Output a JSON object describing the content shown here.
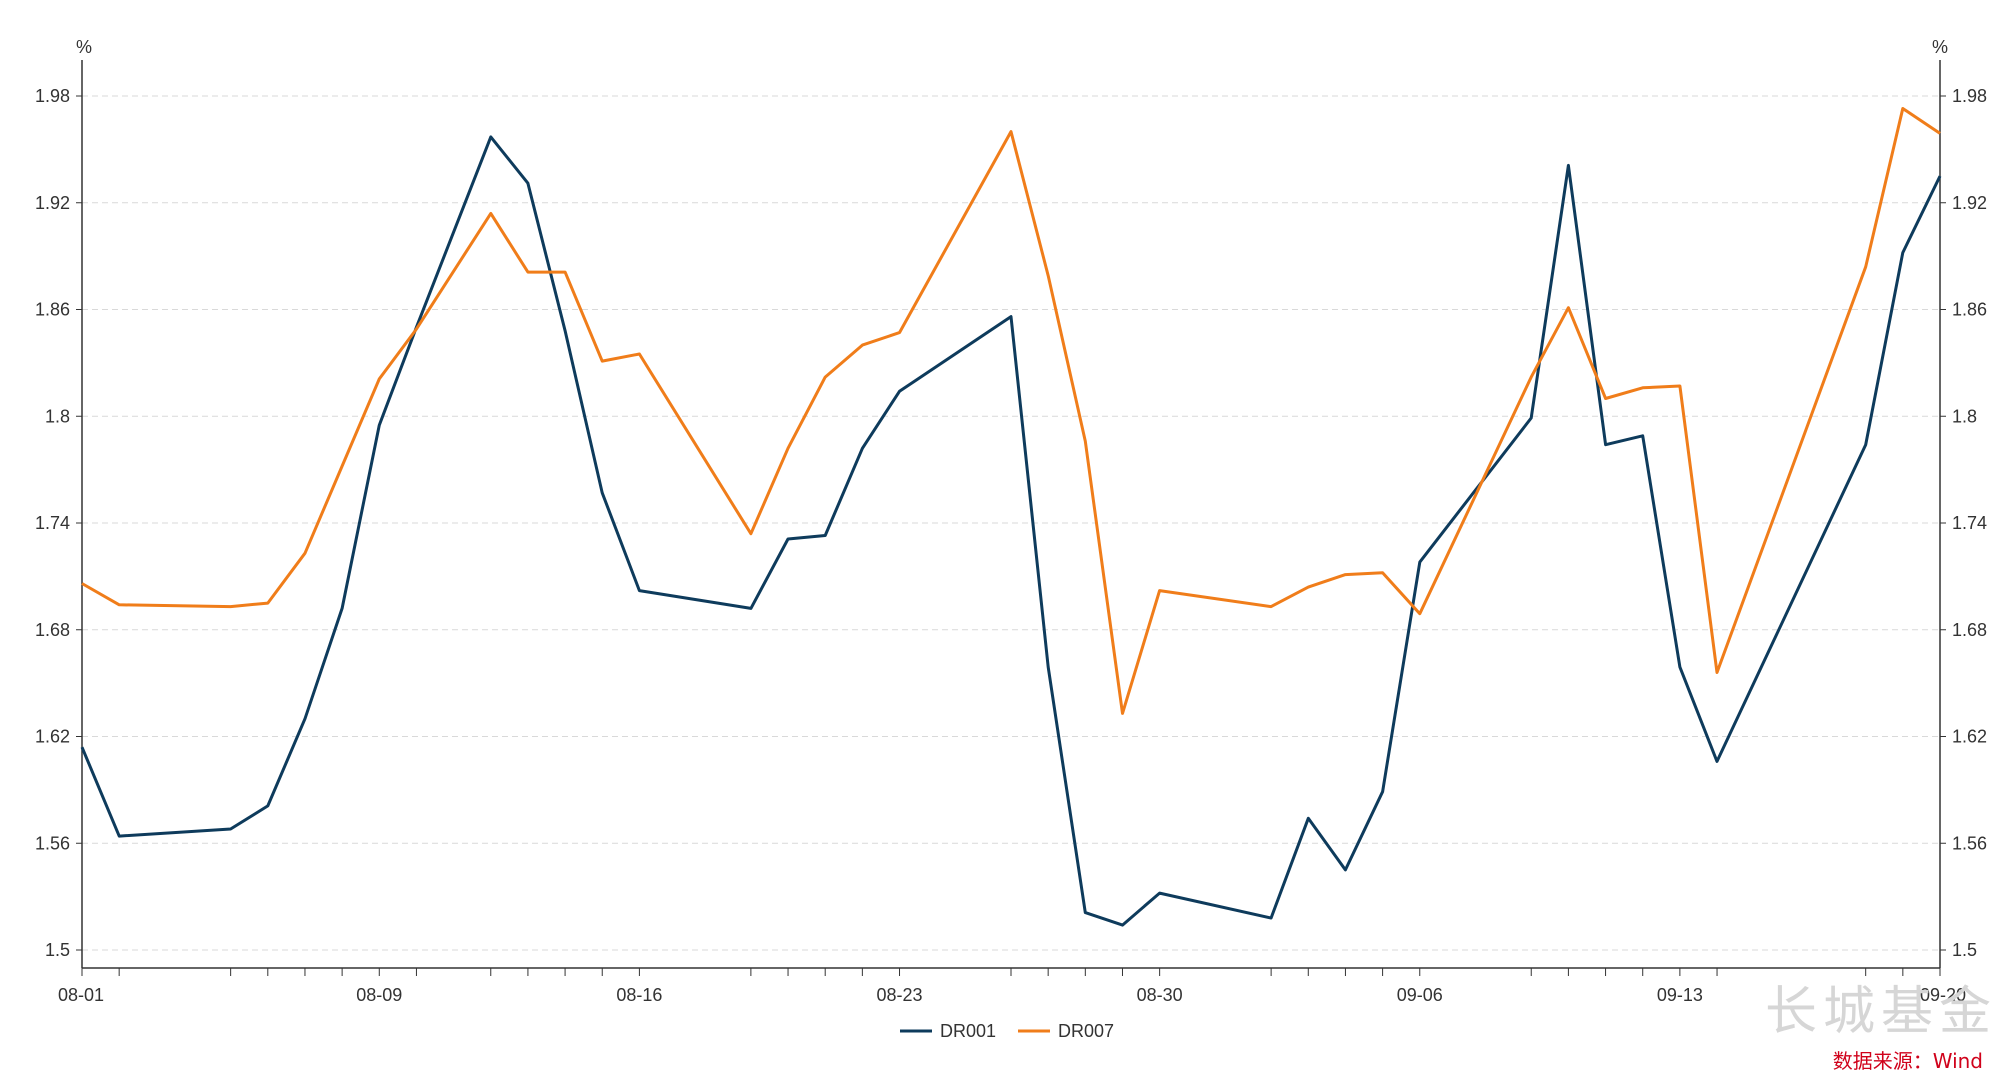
{
  "chart_data": {
    "type": "line",
    "left_axis_unit": "%",
    "right_axis_unit": "%",
    "ylim": [
      1.5,
      1.98
    ],
    "yticks": [
      "1.5",
      "1.56",
      "1.62",
      "1.68",
      "1.74",
      "1.8",
      "1.86",
      "1.92",
      "1.98"
    ],
    "x_start": "08-01",
    "x_end": "09-20",
    "xtick_labels": [
      "08-01",
      "08-09",
      "08-16",
      "08-23",
      "08-30",
      "09-06",
      "09-13",
      "09-20"
    ],
    "grid": "horizontal dashed",
    "legend_position": "bottom-center",
    "series": [
      {
        "name": "DR001",
        "color": "#0e3b5c",
        "points": [
          [
            "08-01",
            1.614
          ],
          [
            "08-02",
            1.564
          ],
          [
            "08-05",
            1.568
          ],
          [
            "08-06",
            1.581
          ],
          [
            "08-07",
            1.63
          ],
          [
            "08-08",
            1.692
          ],
          [
            "08-09",
            1.795
          ],
          [
            "08-10",
            1.85
          ],
          [
            "08-12",
            1.957
          ],
          [
            "08-13",
            1.931
          ],
          [
            "08-14",
            1.848
          ],
          [
            "08-15",
            1.757
          ],
          [
            "08-16",
            1.702
          ],
          [
            "08-19",
            1.692
          ],
          [
            "08-20",
            1.731
          ],
          [
            "08-21",
            1.733
          ],
          [
            "08-22",
            1.782
          ],
          [
            "08-23",
            1.814
          ],
          [
            "08-26",
            1.856
          ],
          [
            "08-27",
            1.659
          ],
          [
            "08-28",
            1.521
          ],
          [
            "08-29",
            1.514
          ],
          [
            "08-30",
            1.532
          ],
          [
            "09-02",
            1.518
          ],
          [
            "09-03",
            1.574
          ],
          [
            "09-04",
            1.545
          ],
          [
            "09-05",
            1.589
          ],
          [
            "09-06",
            1.718
          ],
          [
            "09-09",
            1.799
          ],
          [
            "09-10",
            1.941
          ],
          [
            "09-11",
            1.784
          ],
          [
            "09-12",
            1.789
          ],
          [
            "09-13",
            1.659
          ],
          [
            "09-14",
            1.606
          ],
          [
            "09-18",
            1.784
          ],
          [
            "09-19",
            1.892
          ],
          [
            "09-20",
            1.935
          ]
        ]
      },
      {
        "name": "DR007",
        "color": "#f07d1a",
        "points": [
          [
            "08-01",
            1.706
          ],
          [
            "08-02",
            1.694
          ],
          [
            "08-05",
            1.693
          ],
          [
            "08-06",
            1.695
          ],
          [
            "08-07",
            1.723
          ],
          [
            "08-08",
            1.772
          ],
          [
            "08-09",
            1.821
          ],
          [
            "08-10",
            1.849
          ],
          [
            "08-12",
            1.914
          ],
          [
            "08-13",
            1.881
          ],
          [
            "08-14",
            1.881
          ],
          [
            "08-15",
            1.831
          ],
          [
            "08-16",
            1.835
          ],
          [
            "08-19",
            1.734
          ],
          [
            "08-20",
            1.782
          ],
          [
            "08-21",
            1.822
          ],
          [
            "08-22",
            1.84
          ],
          [
            "08-23",
            1.847
          ],
          [
            "08-26",
            1.96
          ],
          [
            "08-27",
            1.879
          ],
          [
            "08-28",
            1.786
          ],
          [
            "08-29",
            1.633
          ],
          [
            "08-30",
            1.702
          ],
          [
            "09-02",
            1.693
          ],
          [
            "09-03",
            1.704
          ],
          [
            "09-04",
            1.711
          ],
          [
            "09-05",
            1.712
          ],
          [
            "09-06",
            1.689
          ],
          [
            "09-09",
            1.822
          ],
          [
            "09-10",
            1.861
          ],
          [
            "09-11",
            1.81
          ],
          [
            "09-12",
            1.816
          ],
          [
            "09-13",
            1.817
          ],
          [
            "09-14",
            1.656
          ],
          [
            "09-18",
            1.884
          ],
          [
            "09-19",
            1.973
          ],
          [
            "09-20",
            1.959
          ]
        ]
      }
    ]
  },
  "watermark": "长城基金",
  "source_note": "数据来源：Wind"
}
